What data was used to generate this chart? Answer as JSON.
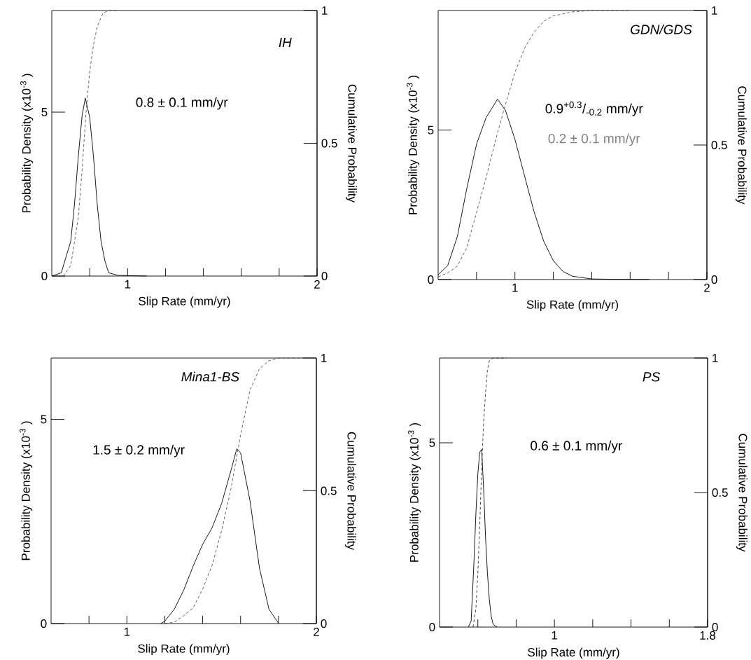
{
  "chart_data": [
    {
      "type": "line",
      "marker": "none",
      "xlabel": "Slip Rate (mm/yr)",
      "ylabel": "Probability Density (x10$^{-3}$ )",
      "y2label": "Cumulative Probability",
      "xlim": [
        0.6,
        2
      ],
      "xticks": [
        {
          "value": 0.8,
          "label": null
        },
        1,
        {
          "value": 1.2,
          "label": null
        },
        {
          "value": 1.4,
          "label": null
        },
        {
          "value": 1.6,
          "label": null
        },
        {
          "value": 1.8,
          "label": null
        },
        2
      ],
      "ylim": [
        0,
        8.1
      ],
      "yticks": [
        0,
        5
      ],
      "y2lim": [
        0,
        1
      ],
      "y2ticks": [
        0,
        0.5,
        1
      ],
      "annotations": [
        "IH",
        "0.8 ± 0.1 mm/yr"
      ],
      "series": [
        {
          "color": "#000000",
          "line_style": "solid",
          "x": [
            0.6,
            0.65,
            0.7,
            0.72,
            0.74,
            0.76,
            0.777,
            0.8,
            0.82,
            0.84,
            0.86,
            0.88,
            0.9,
            0.95,
            1.1
          ],
          "values": [
            0,
            0.1,
            1.06,
            2.2,
            3.65,
            4.9,
            5.43,
            4.84,
            3.65,
            2.17,
            1.06,
            0.47,
            0.1,
            0.02,
            0
          ]
        },
        {
          "color": "#555555",
          "line_style": "dashed",
          "axis": "y2",
          "x": [
            0.66,
            0.7,
            0.74,
            0.76,
            0.78,
            0.8,
            0.82,
            0.84,
            0.87,
            0.9,
            0.95
          ],
          "values": [
            0,
            0.04,
            0.22,
            0.4,
            0.61,
            0.77,
            0.87,
            0.94,
            0.99,
            1,
            1
          ]
        }
      ]
    },
    {
      "type": "line",
      "marker": "none",
      "xlabel": "Slip Rate (mm/yr)",
      "ylabel": "Probability Density (x10$^{-3}$ )",
      "y2label": "Cumulative Probability",
      "xlim": [
        0.6,
        2
      ],
      "xticks": [
        {
          "value": 0.8,
          "label": null
        },
        1,
        {
          "value": 1.2,
          "label": null
        },
        {
          "value": 1.4,
          "label": null
        },
        {
          "value": 1.6,
          "label": null
        },
        {
          "value": 1.8,
          "label": null
        },
        2
      ],
      "ylim": [
        0,
        9
      ],
      "yticks": [
        0,
        5
      ],
      "y2lim": [
        0,
        1
      ],
      "y2ticks": [
        0,
        0.5,
        1
      ],
      "annotations": [
        "GDN/GDS",
        "0.9$^{+0.3}$/$_{-0.2}$ mm/yr",
        "0.2 ± 0.1 mm/yr"
      ],
      "series": [
        {
          "color": "#000000",
          "line_style": "solid",
          "x": [
            0.6,
            0.65,
            0.7,
            0.75,
            0.8,
            0.85,
            0.909,
            0.95,
            1.0,
            1.05,
            1.1,
            1.15,
            1.2,
            1.25,
            1.3,
            1.4,
            1.5,
            1.7
          ],
          "values": [
            0.16,
            0.47,
            1.44,
            3.07,
            4.53,
            5.42,
            6.03,
            5.67,
            4.69,
            3.47,
            2.26,
            1.28,
            0.63,
            0.27,
            0.11,
            0.02,
            0.01,
            0
          ]
        },
        {
          "color": "#555555",
          "line_style": "dashed",
          "axis": "y2",
          "x": [
            0.6,
            0.65,
            0.7,
            0.75,
            0.8,
            0.85,
            0.9,
            0.95,
            1.0,
            1.05,
            1.1,
            1.15,
            1.2,
            1.3,
            1.4,
            1.6
          ],
          "values": [
            0.01,
            0.025,
            0.05,
            0.12,
            0.25,
            0.38,
            0.52,
            0.65,
            0.77,
            0.86,
            0.92,
            0.96,
            0.98,
            0.995,
            1,
            1
          ]
        }
      ]
    },
    {
      "type": "line",
      "marker": "none",
      "xlabel": "Slip Rate (mm/yr)",
      "ylabel": "Probability Density (x10$^{-3}$ )",
      "y2label": "Cumulative Probability",
      "xlim": [
        0.6,
        2
      ],
      "xticks": [
        {
          "value": 0.8,
          "label": null
        },
        1,
        {
          "value": 1.2,
          "label": null
        },
        {
          "value": 1.4,
          "label": null
        },
        {
          "value": 1.6,
          "label": null
        },
        {
          "value": 1.8,
          "label": null
        },
        2
      ],
      "ylim": [
        0,
        6.5
      ],
      "yticks": [
        0,
        5
      ],
      "y2lim": [
        0,
        1
      ],
      "y2ticks": [
        0,
        0.5,
        1
      ],
      "annotations": [
        "Mina1-BS",
        "1.5 ± 0.2 mm/yr"
      ],
      "series": [
        {
          "color": "#000000",
          "line_style": "solid",
          "x": [
            1.18,
            1.2,
            1.25,
            1.3,
            1.35,
            1.4,
            1.45,
            1.5,
            1.55,
            1.58,
            1.6,
            1.65,
            1.7,
            1.75,
            1.8
          ],
          "values": [
            0,
            0.06,
            0.35,
            0.82,
            1.41,
            1.94,
            2.35,
            2.94,
            3.76,
            4.28,
            4.18,
            3.0,
            1.35,
            0.35,
            0.01
          ]
        },
        {
          "color": "#555555",
          "line_style": "dashed",
          "axis": "y2",
          "x": [
            1.2,
            1.25,
            1.3,
            1.35,
            1.4,
            1.45,
            1.5,
            1.55,
            1.6,
            1.65,
            1.7,
            1.75,
            1.8,
            2.0
          ],
          "values": [
            0,
            0.005,
            0.03,
            0.06,
            0.13,
            0.22,
            0.35,
            0.51,
            0.71,
            0.88,
            0.96,
            0.99,
            1,
            1
          ]
        }
      ]
    },
    {
      "type": "line",
      "marker": "none",
      "xlabel": "Slip Rate (mm/yr)",
      "ylabel": "Probability Density (x10$^{-3}$ )",
      "y2label": "Cumulative Probability",
      "xlim": [
        0.4,
        1.8
      ],
      "xticks": [
        {
          "value": 0.6,
          "label": null
        },
        {
          "value": 0.8,
          "label": null
        },
        1,
        {
          "value": 1.2,
          "label": null
        },
        {
          "value": 1.4,
          "label": null
        },
        {
          "value": 1.6,
          "label": null
        },
        1.8
      ],
      "ylim": [
        0,
        7.3
      ],
      "yticks": [
        0,
        5
      ],
      "y2lim": [
        0,
        1
      ],
      "y2ticks": [
        0,
        0.5,
        1
      ],
      "annotations": [
        "PS",
        "0.6 ± 0.1 mm/yr"
      ],
      "series": [
        {
          "color": "#000000",
          "line_style": "solid",
          "x": [
            0.55,
            0.565,
            0.58,
            0.59,
            0.6,
            0.61,
            0.62,
            0.63,
            0.64,
            0.65,
            0.66,
            0.67,
            0.68,
            0.7
          ],
          "values": [
            0,
            0.16,
            1.8,
            3.1,
            4.16,
            4.75,
            4.82,
            3.77,
            2.46,
            1.47,
            0.75,
            0.29,
            0.07,
            0
          ]
        },
        {
          "color": "#333333",
          "line_style": "dashed",
          "axis": "y2",
          "x": [
            0.575,
            0.59,
            0.6,
            0.61,
            0.62,
            0.63,
            0.64,
            0.65,
            0.66,
            0.68,
            0.75
          ],
          "values": [
            0,
            0.07,
            0.2,
            0.38,
            0.59,
            0.76,
            0.87,
            0.955,
            0.99,
            1,
            1
          ]
        }
      ]
    }
  ]
}
